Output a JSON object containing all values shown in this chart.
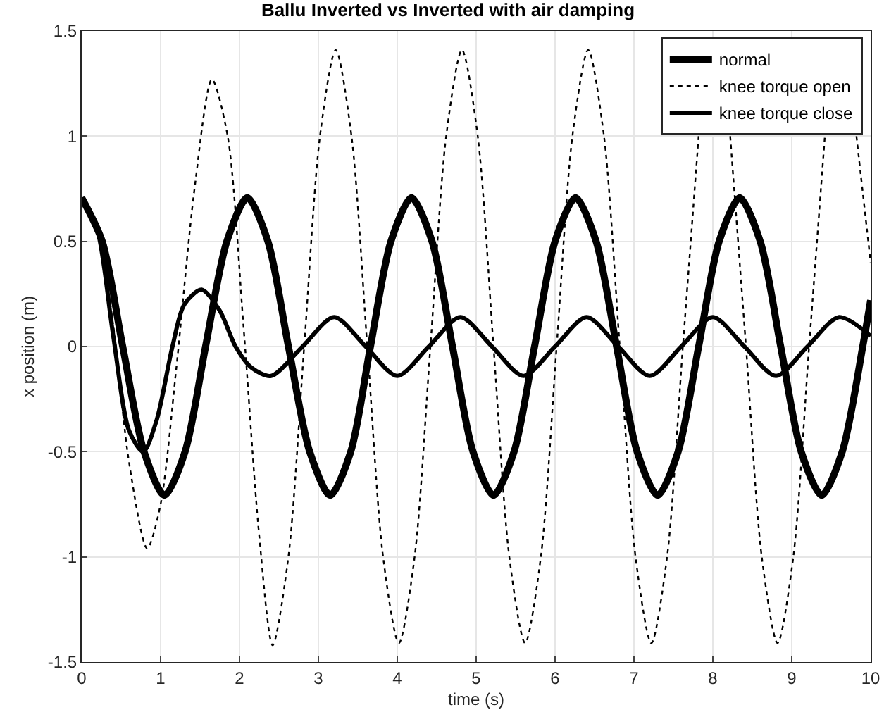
{
  "chart_data": {
    "type": "line",
    "title": "Ballu Inverted vs Inverted with air damping",
    "xlabel": "time (s)",
    "ylabel": "x position (m)",
    "xlim": [
      0,
      10
    ],
    "xticks": [
      0,
      1,
      2,
      3,
      4,
      5,
      6,
      7,
      8,
      9,
      10
    ],
    "ylim": [
      -1.5,
      1.5
    ],
    "yticks": [
      -1.5,
      -1,
      -0.5,
      0,
      0.5,
      1,
      1.5
    ],
    "grid": true,
    "legend": "top right",
    "series": [
      {
        "name": "normal",
        "color": "#000000",
        "line_style": "solid",
        "x": [
          0,
          0.26,
          0.52,
          0.79,
          1.05,
          1.31,
          1.57,
          1.84,
          2.1,
          2.36,
          2.62,
          2.89,
          3.15,
          3.41,
          3.66,
          3.92,
          4.18,
          4.44,
          4.7,
          4.96,
          5.22,
          5.48,
          5.74,
          6.0,
          6.26,
          6.52,
          6.78,
          7.04,
          7.3,
          7.56,
          7.82,
          8.08,
          8.34,
          8.6,
          8.86,
          9.12,
          9.38,
          9.64,
          9.9,
          10
        ],
        "values": [
          0.707,
          0.5,
          0,
          -0.5,
          -0.707,
          -0.5,
          0,
          0.5,
          0.707,
          0.5,
          0,
          -0.5,
          -0.707,
          -0.5,
          0,
          0.5,
          0.707,
          0.5,
          0,
          -0.5,
          -0.707,
          -0.5,
          0,
          0.5,
          0.707,
          0.5,
          0,
          -0.5,
          -0.707,
          -0.5,
          0,
          0.5,
          0.707,
          0.5,
          0,
          -0.5,
          -0.707,
          -0.5,
          0,
          0.22
        ]
      },
      {
        "name": "knee torque open",
        "color": "#000000",
        "line_style": "dotted",
        "x": [
          0,
          0.2,
          0.4,
          0.6,
          0.83,
          1.0,
          1.2,
          1.43,
          1.65,
          1.85,
          2.05,
          2.25,
          2.42,
          2.62,
          2.82,
          3.02,
          3.22,
          3.42,
          3.62,
          3.82,
          4.02,
          4.22,
          4.42,
          4.62,
          4.82,
          5.02,
          5.22,
          5.42,
          5.62,
          5.82,
          6.02,
          6.22,
          6.42,
          6.62,
          6.82,
          7.02,
          7.22,
          7.42,
          7.62,
          7.82,
          8.02,
          8.22,
          8.42,
          8.62,
          8.82,
          9.02,
          9.22,
          9.42,
          9.62,
          9.82,
          10
        ],
        "values": [
          0.707,
          0.55,
          0.1,
          -0.55,
          -0.96,
          -0.75,
          -0.1,
          0.75,
          1.27,
          1.0,
          0.1,
          -0.9,
          -1.42,
          -1.0,
          0,
          1.0,
          1.41,
          1.0,
          0,
          -1.0,
          -1.41,
          -1.0,
          0,
          1.0,
          1.41,
          1.0,
          0,
          -1.0,
          -1.41,
          -1.0,
          0,
          1.0,
          1.41,
          1.0,
          0,
          -1.0,
          -1.41,
          -1.0,
          0,
          1.0,
          null,
          1.0,
          0,
          -1.0,
          -1.41,
          -1.0,
          0,
          1.0,
          null,
          1.0,
          0.4
        ]
      },
      {
        "name": "knee torque close",
        "color": "#000000",
        "line_style": "solid",
        "x": [
          0,
          0.2,
          0.4,
          0.6,
          0.78,
          0.95,
          1.15,
          1.3,
          1.52,
          1.75,
          1.95,
          2.15,
          2.4,
          2.8,
          3.2,
          3.6,
          4.0,
          4.4,
          4.8,
          5.2,
          5.6,
          6.0,
          6.4,
          6.8,
          7.2,
          7.6,
          8.0,
          8.4,
          8.8,
          9.2,
          9.6,
          10
        ],
        "values": [
          0.707,
          0.55,
          0.05,
          -0.4,
          -0.5,
          -0.35,
          0.0,
          0.2,
          0.27,
          0.17,
          0.0,
          -0.1,
          -0.14,
          0,
          0.14,
          0,
          -0.14,
          0,
          0.14,
          0,
          -0.14,
          0,
          0.14,
          0,
          -0.14,
          0,
          0.14,
          0,
          -0.14,
          0,
          0.14,
          0.05
        ]
      }
    ]
  }
}
